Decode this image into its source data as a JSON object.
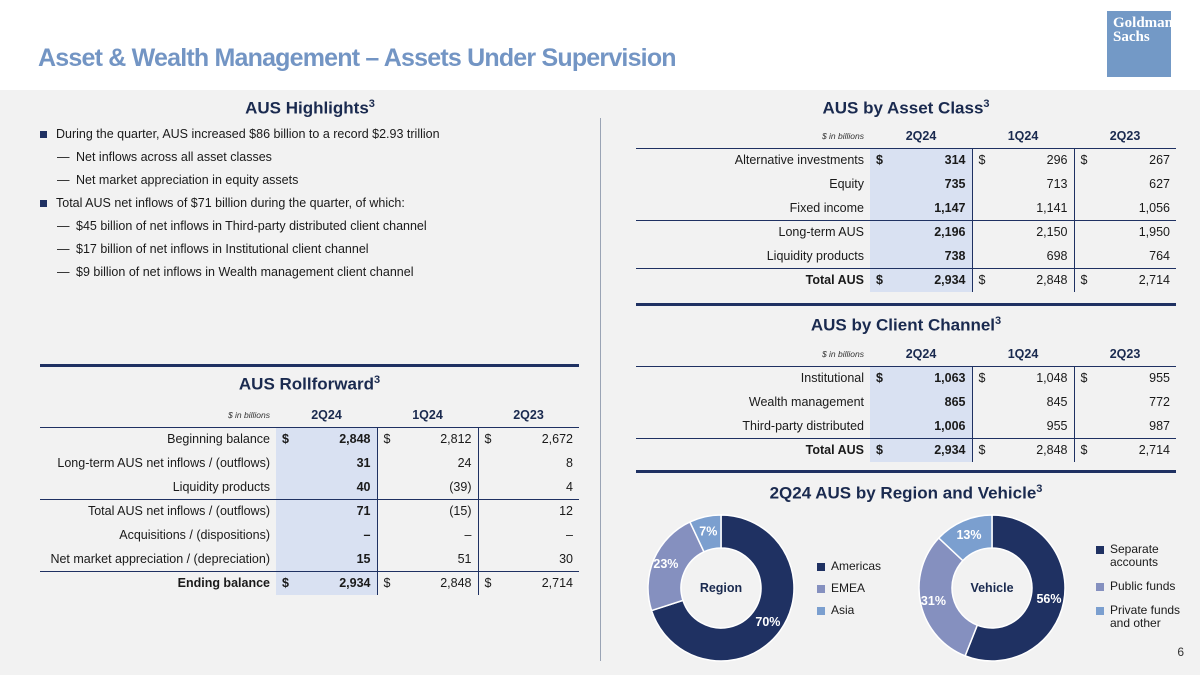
{
  "header": {
    "title": "Asset & Wealth Management – Assets Under Supervision",
    "logo_line1": "Goldman",
    "logo_line2": "Sachs"
  },
  "highlights": {
    "title": "AUS Highlights",
    "footnote": "3",
    "bullets": [
      {
        "level": 1,
        "text": "During the quarter, AUS increased $86 billion to a record $2.93 trillion"
      },
      {
        "level": 2,
        "text": "Net inflows across all asset classes"
      },
      {
        "level": 2,
        "text": "Net market appreciation in equity assets"
      },
      {
        "level": 1,
        "text": "Total AUS net inflows of $71 billion during the quarter, of which:"
      },
      {
        "level": 2,
        "text": "$45 billion of net inflows in Third-party distributed client channel"
      },
      {
        "level": 2,
        "text": "$17 billion of net inflows in Institutional client channel"
      },
      {
        "level": 2,
        "text": "$9 billion of net inflows in Wealth management client channel"
      }
    ]
  },
  "asset_class": {
    "title": "AUS by Asset Class",
    "footnote": "3",
    "unit": "$ in billions",
    "columns": [
      "2Q24",
      "1Q24",
      "2Q23"
    ],
    "rows": [
      {
        "label": "Alternative investments",
        "dollar": true,
        "values": [
          "314",
          "296",
          "267"
        ]
      },
      {
        "label": "Equity",
        "dollar": false,
        "values": [
          "735",
          "713",
          "627"
        ]
      },
      {
        "label": "Fixed income",
        "dollar": false,
        "values": [
          "1,147",
          "1,141",
          "1,056"
        ]
      },
      {
        "label": "Long-term AUS",
        "dollar": false,
        "values": [
          "2,196",
          "2,150",
          "1,950"
        ]
      },
      {
        "label": "Liquidity products",
        "dollar": false,
        "values": [
          "738",
          "698",
          "764"
        ]
      },
      {
        "label": "Total AUS",
        "dollar": true,
        "values": [
          "2,934",
          "2,848",
          "2,714"
        ]
      }
    ]
  },
  "client_channel": {
    "title": "AUS by Client Channel",
    "footnote": "3",
    "unit": "$ in billions",
    "columns": [
      "2Q24",
      "1Q24",
      "2Q23"
    ],
    "rows": [
      {
        "label": "Institutional",
        "dollar": true,
        "values": [
          "1,063",
          "1,048",
          "955"
        ]
      },
      {
        "label": "Wealth management",
        "dollar": false,
        "values": [
          "865",
          "845",
          "772"
        ]
      },
      {
        "label": "Third-party distributed",
        "dollar": false,
        "values": [
          "1,006",
          "955",
          "987"
        ]
      },
      {
        "label": "Total AUS",
        "dollar": true,
        "values": [
          "2,934",
          "2,848",
          "2,714"
        ]
      }
    ]
  },
  "rollforward": {
    "title": "AUS Rollforward",
    "footnote": "3",
    "unit": "$ in billions",
    "columns": [
      "2Q24",
      "1Q24",
      "2Q23"
    ],
    "rows": [
      {
        "label": "Beginning balance",
        "dollar": true,
        "values": [
          "2,848",
          "2,812",
          "2,672"
        ]
      },
      {
        "label": "Long-term AUS net inflows / (outflows)",
        "dollar": false,
        "values": [
          "31",
          "24",
          "8"
        ]
      },
      {
        "label": "Liquidity products",
        "dollar": false,
        "values": [
          "40",
          "(39)",
          "4"
        ]
      },
      {
        "label": "Total AUS net inflows / (outflows)",
        "dollar": false,
        "values": [
          "71",
          "(15)",
          "12"
        ]
      },
      {
        "label": "Acquisitions / (dispositions)",
        "dollar": false,
        "values": [
          "–",
          "–",
          "–"
        ]
      },
      {
        "label": "Net market appreciation / (depreciation)",
        "dollar": false,
        "values": [
          "15",
          "51",
          "30"
        ]
      },
      {
        "label": "Ending balance",
        "dollar": true,
        "values": [
          "2,934",
          "2,848",
          "2,714"
        ]
      }
    ]
  },
  "region_vehicle": {
    "title": "2Q24 AUS by Region and Vehicle",
    "footnote": "3"
  },
  "chart_data": [
    {
      "type": "pie",
      "title": "Region",
      "categories": [
        "Americas",
        "EMEA",
        "Asia"
      ],
      "values": [
        70,
        23,
        7
      ],
      "labels": [
        "70%",
        "23%",
        "7%"
      ],
      "colors": [
        "#1f3162",
        "#8590bf",
        "#7b9fcf"
      ]
    },
    {
      "type": "pie",
      "title": "Vehicle",
      "categories": [
        "Separate accounts",
        "Public funds",
        "Private funds and other"
      ],
      "values": [
        56,
        31,
        13
      ],
      "labels": [
        "56%",
        "31%",
        "13%"
      ],
      "colors": [
        "#1f3162",
        "#8590bf",
        "#7b9fcf"
      ]
    }
  ],
  "page_number": "6"
}
